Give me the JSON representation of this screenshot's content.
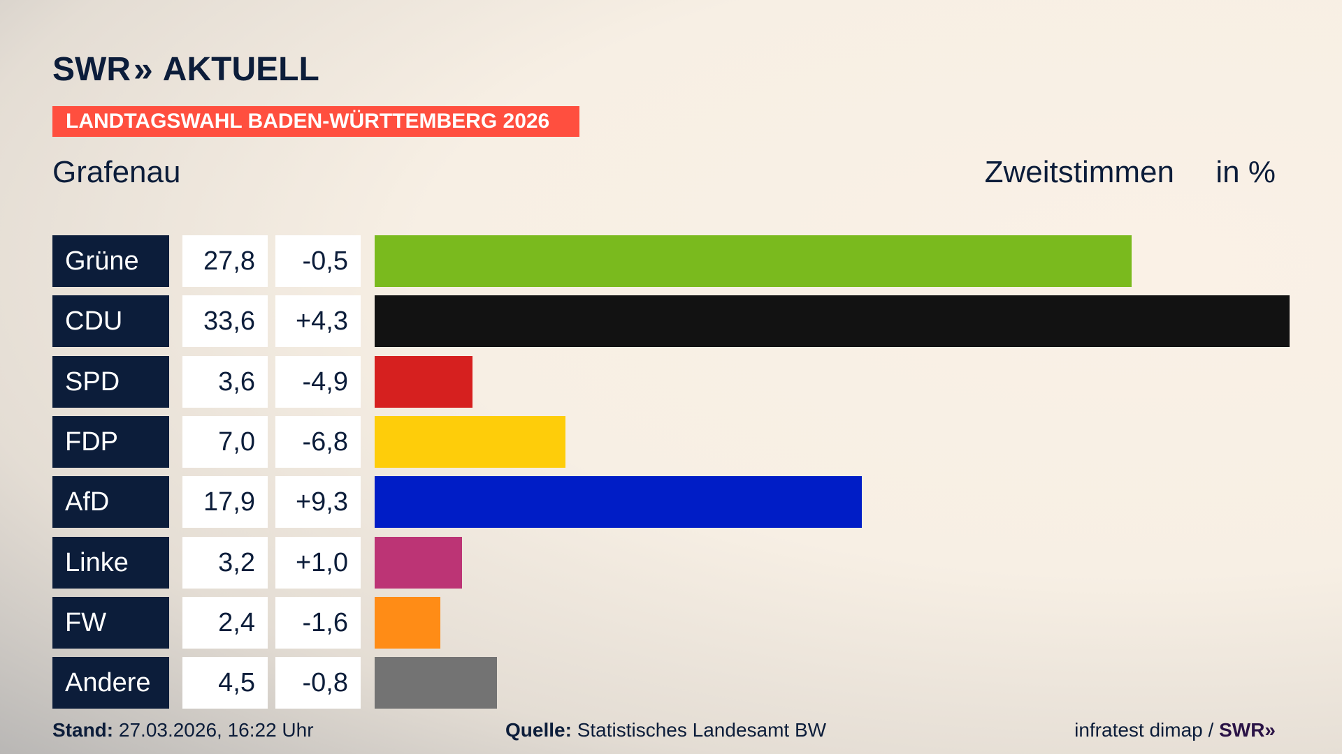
{
  "header": {
    "logo_text": "SWR",
    "logo_suffix": "AKTUELL",
    "banner": "LANDTAGSWAHL BADEN-WÜRTTEMBERG 2026",
    "region": "Grafenau",
    "metric": "Zweitstimmen",
    "unit": "in %"
  },
  "chart_data": {
    "type": "bar",
    "orientation": "horizontal",
    "categories": [
      "Grüne",
      "CDU",
      "SPD",
      "FDP",
      "AfD",
      "Linke",
      "FW",
      "Andere"
    ],
    "values": [
      27.8,
      33.6,
      3.6,
      7.0,
      17.9,
      3.2,
      2.4,
      4.5
    ],
    "labels": [
      "27,8",
      "33,6",
      "3,6",
      "7,0",
      "17,9",
      "3,2",
      "2,4",
      "4,5"
    ],
    "changes": [
      "-0,5",
      "+4,3",
      "-4,9",
      "-6,8",
      "+9,3",
      "+1,0",
      "-1,6",
      "-0,8"
    ],
    "colors": [
      "#7aba1e",
      "#121212",
      "#d6201f",
      "#fecd0a",
      "#001dc6",
      "#bc3475",
      "#ff8c16",
      "#737373"
    ],
    "xlim": [
      0,
      33.6
    ]
  },
  "footer": {
    "stand_label": "Stand:",
    "stand_value": "27.03.2026, 16:22 Uhr",
    "source_label": "Quelle:",
    "source_value": "Statistisches Landesamt BW",
    "credit": "infratest dimap /",
    "credit_logo": "SWR"
  }
}
